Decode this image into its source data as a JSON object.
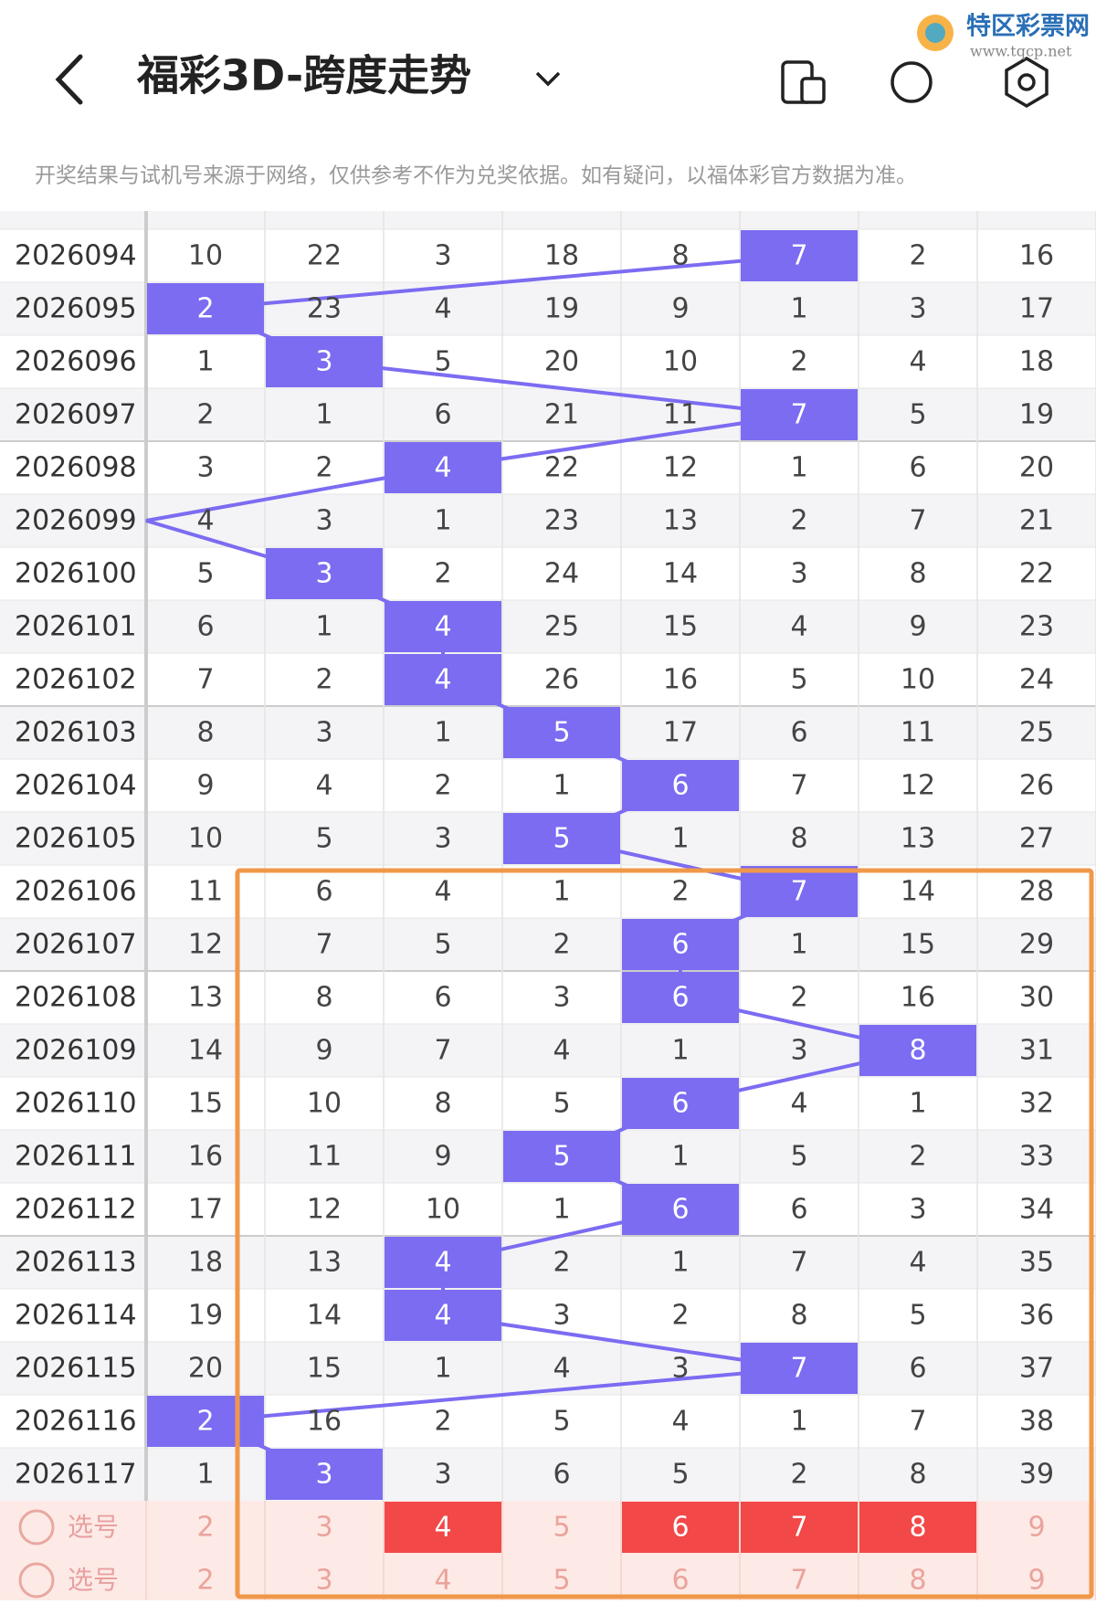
{
  "header": {
    "title": "福彩3D-跨度走势",
    "logo_name": "特区彩票网",
    "logo_url": "www.tqcp.net"
  },
  "notice": "开奖结果与试机号来源于网络，仅供参考不作为兑奖依据。如有疑问，以福体彩官方数据为准。",
  "hit_color": "#7b6cf2",
  "selected_color": "#f24848",
  "rows": [
    {
      "period": "2026094",
      "cells": [
        10,
        22,
        3,
        18,
        8,
        7,
        2,
        16
      ],
      "hit": 5
    },
    {
      "period": "2026095",
      "cells": [
        2,
        23,
        4,
        19,
        9,
        1,
        3,
        17
      ],
      "hit": 0
    },
    {
      "period": "2026096",
      "cells": [
        1,
        3,
        5,
        20,
        10,
        2,
        4,
        18
      ],
      "hit": 1
    },
    {
      "period": "2026097",
      "cells": [
        2,
        1,
        6,
        21,
        11,
        7,
        5,
        19
      ],
      "hit": 5
    },
    {
      "period": "2026098",
      "cells": [
        3,
        2,
        4,
        22,
        12,
        1,
        6,
        20
      ],
      "hit": 2
    },
    {
      "period": "2026099",
      "cells": [
        4,
        3,
        1,
        23,
        13,
        2,
        7,
        21
      ],
      "hit": null
    },
    {
      "period": "2026100",
      "cells": [
        5,
        3,
        2,
        24,
        14,
        3,
        8,
        22
      ],
      "hit": 1
    },
    {
      "period": "2026101",
      "cells": [
        6,
        1,
        4,
        25,
        15,
        4,
        9,
        23
      ],
      "hit": 2
    },
    {
      "period": "2026102",
      "cells": [
        7,
        2,
        4,
        26,
        16,
        5,
        10,
        24
      ],
      "hit": 2
    },
    {
      "period": "2026103",
      "cells": [
        8,
        3,
        1,
        5,
        17,
        6,
        11,
        25
      ],
      "hit": 3
    },
    {
      "period": "2026104",
      "cells": [
        9,
        4,
        2,
        1,
        6,
        7,
        12,
        26
      ],
      "hit": 4
    },
    {
      "period": "2026105",
      "cells": [
        10,
        5,
        3,
        5,
        1,
        8,
        13,
        27
      ],
      "hit": 3
    },
    {
      "period": "2026106",
      "cells": [
        11,
        6,
        4,
        1,
        2,
        7,
        14,
        28
      ],
      "hit": 5
    },
    {
      "period": "2026107",
      "cells": [
        12,
        7,
        5,
        2,
        6,
        1,
        15,
        29
      ],
      "hit": 4
    },
    {
      "period": "2026108",
      "cells": [
        13,
        8,
        6,
        3,
        6,
        2,
        16,
        30
      ],
      "hit": 4
    },
    {
      "period": "2026109",
      "cells": [
        14,
        9,
        7,
        4,
        1,
        3,
        8,
        31
      ],
      "hit": 6
    },
    {
      "period": "2026110",
      "cells": [
        15,
        10,
        8,
        5,
        6,
        4,
        1,
        32
      ],
      "hit": 4
    },
    {
      "period": "2026111",
      "cells": [
        16,
        11,
        9,
        5,
        1,
        5,
        2,
        33
      ],
      "hit": 3
    },
    {
      "period": "2026112",
      "cells": [
        17,
        12,
        10,
        1,
        6,
        6,
        3,
        34
      ],
      "hit": 4
    },
    {
      "period": "2026113",
      "cells": [
        18,
        13,
        4,
        2,
        1,
        7,
        4,
        35
      ],
      "hit": 2
    },
    {
      "period": "2026114",
      "cells": [
        19,
        14,
        4,
        3,
        2,
        8,
        5,
        36
      ],
      "hit": 2
    },
    {
      "period": "2026115",
      "cells": [
        20,
        15,
        1,
        4,
        3,
        7,
        6,
        37
      ],
      "hit": 5
    },
    {
      "period": "2026116",
      "cells": [
        2,
        16,
        2,
        5,
        4,
        1,
        7,
        38
      ],
      "hit": 0
    },
    {
      "period": "2026117",
      "cells": [
        1,
        3,
        3,
        6,
        5,
        2,
        8,
        39
      ],
      "hit": 1
    }
  ],
  "selection": [
    {
      "label": "选号",
      "numbers": [
        2,
        3,
        4,
        5,
        6,
        7,
        8,
        9
      ],
      "selected": [
        2,
        4,
        5,
        6
      ]
    },
    {
      "label": "选号",
      "numbers": [
        2,
        3,
        4,
        5,
        6,
        7,
        8,
        9
      ],
      "selected": []
    }
  ]
}
